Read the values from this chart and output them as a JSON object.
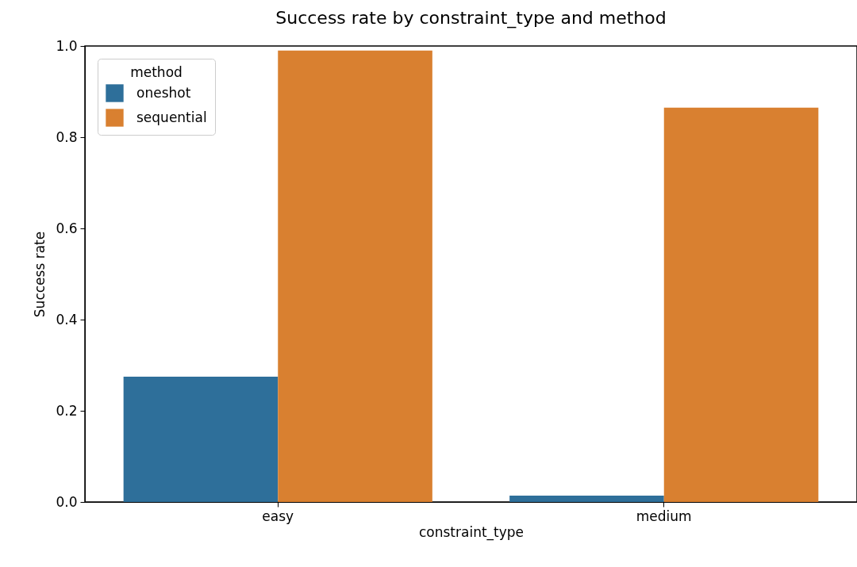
{
  "chart_data": {
    "type": "bar",
    "title": "Success rate by constraint_type and method",
    "xlabel": "constraint_type",
    "ylabel": "Success rate",
    "legend_title": "method",
    "categories": [
      "easy",
      "medium"
    ],
    "series": [
      {
        "name": "oneshot",
        "color": "#2e6f9a",
        "values": [
          0.275,
          0.014
        ]
      },
      {
        "name": "sequential",
        "color": "#d98030",
        "values": [
          0.99,
          0.865
        ]
      }
    ],
    "ylim": [
      0,
      1.0
    ],
    "yticks": [
      {
        "value": 0,
        "label": "0.0"
      },
      {
        "value": 0.2,
        "label": "0.2"
      },
      {
        "value": 0.4,
        "label": "0.4"
      },
      {
        "value": 0.6,
        "label": "0.6"
      },
      {
        "value": 0.8,
        "label": "0.8"
      },
      {
        "value": 1.0,
        "label": "1.0"
      }
    ],
    "grid": false,
    "legend": "top left"
  }
}
